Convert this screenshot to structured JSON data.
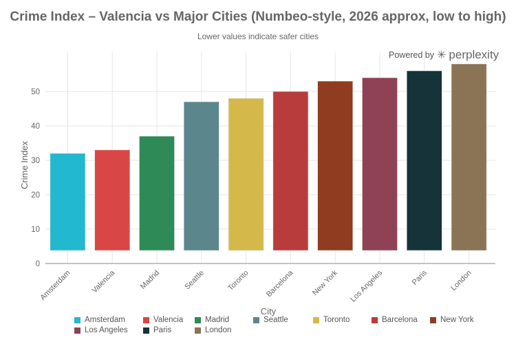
{
  "chart_data": {
    "type": "bar",
    "title": "Crime Index – Valencia vs Major Cities (Numbeo-style, 2026 approx, low to high)",
    "subtitle": "Lower values indicate safer cities",
    "xlabel": "City",
    "ylabel": "Crime Index",
    "ylim": [
      0,
      60
    ],
    "yticks": [
      0,
      10,
      20,
      30,
      40,
      50
    ],
    "grid": true,
    "legend_placement": "bottom",
    "categories": [
      "Amsterdam",
      "Valencia",
      "Madrid",
      "Seattle",
      "Toronto",
      "Barcelona",
      "New York",
      "Los Angeles",
      "Paris",
      "London"
    ],
    "values": [
      32,
      33,
      37,
      47,
      48,
      50,
      53,
      54,
      56,
      58
    ],
    "colors": [
      "#22b8cf",
      "#d94646",
      "#2e8b57",
      "#5b868c",
      "#d4b94a",
      "#b83c3c",
      "#8f3c20",
      "#8f4155",
      "#153339",
      "#8b7355"
    ]
  },
  "branding": {
    "powered_by": "Powered by",
    "name": "perplexity"
  }
}
